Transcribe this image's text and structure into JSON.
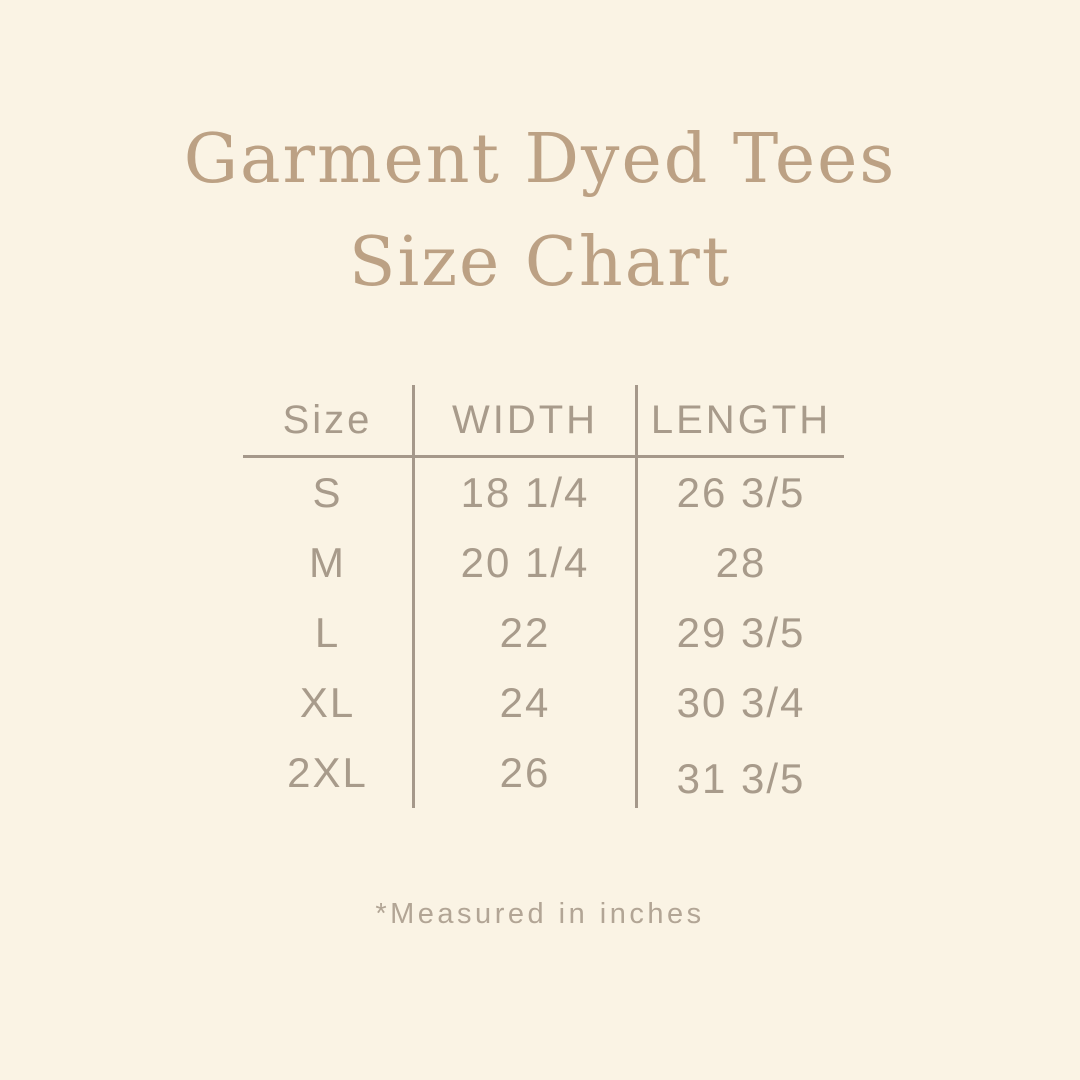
{
  "title": {
    "line1": "Garment Dyed Tees",
    "line2": "Size Chart"
  },
  "footnote": "*Measured in inches",
  "colors": {
    "background": "#faf3e4",
    "title_text": "#bca184",
    "table_text": "#a89b8b",
    "table_lines": "#a5988a",
    "footnote_text": "#b2a595"
  },
  "chart_data": {
    "type": "table",
    "title": "Garment Dyed Tees Size Chart",
    "columns": [
      "Size",
      "WIDTH",
      "LENGTH"
    ],
    "rows": [
      [
        "S",
        "18 1/4",
        "26 3/5"
      ],
      [
        "M",
        "20 1/4",
        "28"
      ],
      [
        "L",
        "22",
        "29 3/5"
      ],
      [
        "XL",
        "24",
        "30 3/4"
      ],
      [
        "2XL",
        "26",
        "31 3/5"
      ]
    ],
    "units_note": "*Measured in inches"
  },
  "table": {
    "headers": {
      "size": "Size",
      "width": "WIDTH",
      "length": "LENGTH"
    },
    "rows": [
      {
        "size": "S",
        "width": "18 1/4",
        "length": "26 3/5"
      },
      {
        "size": "M",
        "width": "20 1/4",
        "length": "28"
      },
      {
        "size": "L",
        "width": "22",
        "length": "29 3/5"
      },
      {
        "size": "XL",
        "width": "24",
        "length": "30 3/4"
      },
      {
        "size": "2XL",
        "width": "26",
        "length": "31 3/5"
      }
    ]
  }
}
